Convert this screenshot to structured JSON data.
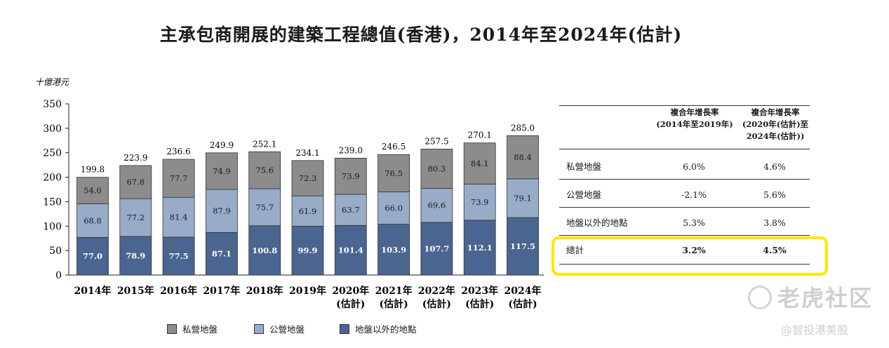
{
  "title": "主承包商開展的建築工程總值(香港)，2014年至2024年(估計)",
  "chart_data": {
    "type": "bar",
    "stacked": true,
    "ylabel": "十億港元",
    "ylim": [
      0,
      350
    ],
    "yticks": [
      0,
      50,
      100,
      150,
      200,
      250,
      300,
      350
    ],
    "categories": [
      [
        "2014年"
      ],
      [
        "2015年"
      ],
      [
        "2016年"
      ],
      [
        "2017年"
      ],
      [
        "2018年"
      ],
      [
        "2019年"
      ],
      [
        "2020年",
        "(估計)"
      ],
      [
        "2021年",
        "(估計)"
      ],
      [
        "2022年",
        "(估計)"
      ],
      [
        "2023年",
        "(估計)"
      ],
      [
        "2024年",
        "(估計)"
      ]
    ],
    "series": [
      {
        "name": "地盤以外的地點",
        "color": "#4a6590",
        "label_color": "#ffffff",
        "values": [
          77.0,
          78.9,
          77.5,
          87.1,
          100.8,
          99.9,
          101.4,
          103.9,
          107.7,
          112.1,
          117.5
        ]
      },
      {
        "name": "公營地盤",
        "color": "#98acc8",
        "label_color": "#1a1a1a",
        "values": [
          68.8,
          77.2,
          81.4,
          87.9,
          75.7,
          61.9,
          63.7,
          66.0,
          69.6,
          73.9,
          79.1
        ]
      },
      {
        "name": "私營地盤",
        "color": "#8c8c8c",
        "label_color": "#1a1a1a",
        "values": [
          54.0,
          67.8,
          77.7,
          74.9,
          75.6,
          72.3,
          73.9,
          76.5,
          80.3,
          84.1,
          88.4
        ]
      }
    ],
    "totals": [
      199.8,
      223.9,
      236.6,
      249.9,
      252.1,
      234.1,
      239.0,
      246.5,
      257.5,
      270.1,
      285.0
    ]
  },
  "legend": [
    {
      "label": "私營地盤",
      "color": "#8c8c8c"
    },
    {
      "label": "公營地盤",
      "color": "#98acc8"
    },
    {
      "label": "地盤以外的地點",
      "color": "#4a6590"
    }
  ],
  "cagr_table": {
    "headers": [
      [
        "複合年增長率",
        "(2014年至2019年)"
      ],
      [
        "複合年增長率",
        "(2020年(估計)至",
        "2024年(估計))"
      ]
    ],
    "rows": [
      {
        "label": "私營地盤",
        "cagr_2014_2019": "6.0%",
        "cagr_2020_2024": "4.6%"
      },
      {
        "label": "公營地盤",
        "cagr_2014_2019": "-2.1%",
        "cagr_2020_2024": "5.6%"
      },
      {
        "label": "地盤以外的地點",
        "cagr_2014_2019": "5.3%",
        "cagr_2020_2024": "3.8%"
      },
      {
        "label": "總計",
        "cagr_2014_2019": "3.2%",
        "cagr_2020_2024": "4.5%"
      }
    ]
  },
  "watermark": {
    "brand": "老虎社区",
    "handle": "@智投港美股"
  }
}
